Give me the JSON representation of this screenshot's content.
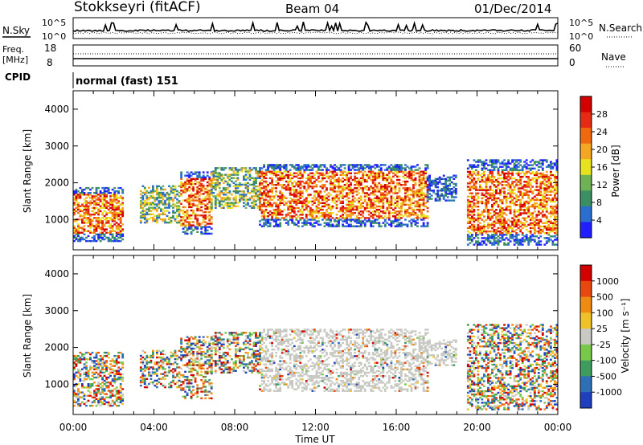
{
  "header": {
    "title": "Stokkseyri (fitACF)",
    "beam": "Beam 04",
    "date": "01/Dec/2014"
  },
  "top_panels": {
    "nsky_label": "N.Sky",
    "nsky_ticks": [
      "10^5",
      "10^0"
    ],
    "nsearch_label": "N.Search",
    "nsearch_ticks": [
      "10^5",
      "10^0"
    ],
    "freq_label": "Freq.",
    "freq_unit": "[MHz]",
    "freq_ticks": [
      "18",
      "8"
    ],
    "nave_label": "Nave",
    "nave_ticks": [
      "60",
      "0"
    ],
    "cpid_label": "CPID",
    "cpid_text": "normal (fast) 151"
  },
  "colors": {
    "power": [
      "#1f1fff",
      "#2a6fcf",
      "#3a8f63",
      "#6fb256",
      "#e8e21c",
      "#f5a623",
      "#ef6a0f",
      "#e62a14",
      "#d40000"
    ],
    "velocity": [
      "#1f3fbf",
      "#2f6fb8",
      "#3e9c5c",
      "#78c84a",
      "#c9c9c3",
      "#f0c22a",
      "#ef8a12",
      "#e8480e",
      "#d40000"
    ]
  },
  "chart_data": [
    {
      "type": "heatmap",
      "name": "power",
      "ylabel": "Slant Range [km]",
      "yticks": [
        "4000",
        "3000",
        "2000",
        "1000"
      ],
      "ylim": [
        180,
        4500
      ],
      "colorbar_label": "Power [dB]",
      "colorbar_ticks": [
        "28",
        "24",
        "20",
        "16",
        "12",
        "8",
        "4"
      ],
      "clim": [
        0,
        30
      ],
      "regions": [
        {
          "t": [
            0.0,
            2.5
          ],
          "r": [
            400,
            1850
          ],
          "level": "high"
        },
        {
          "t": [
            3.3,
            5.2
          ],
          "r": [
            900,
            1900
          ],
          "level": "mid"
        },
        {
          "t": [
            5.3,
            6.8
          ],
          "r": [
            600,
            2300
          ],
          "level": "high"
        },
        {
          "t": [
            6.8,
            9.2
          ],
          "r": [
            1300,
            2400
          ],
          "level": "mid"
        },
        {
          "t": [
            9.2,
            17.5
          ],
          "r": [
            800,
            2500
          ],
          "level": "high"
        },
        {
          "t": [
            17.5,
            19.0
          ],
          "r": [
            1500,
            2200
          ],
          "level": "low"
        },
        {
          "t": [
            19.5,
            24.0
          ],
          "r": [
            300,
            2600
          ],
          "level": "high"
        }
      ]
    },
    {
      "type": "heatmap",
      "name": "velocity",
      "ylabel": "Slant Range [km]",
      "yticks": [
        "4000",
        "3000",
        "2000",
        "1000"
      ],
      "ylim": [
        180,
        4500
      ],
      "colorbar_label": "Velocity [m s⁻¹]",
      "colorbar_ticks": [
        "1000",
        "500",
        "100",
        "25",
        "-25",
        "-100",
        "-500",
        "-1000"
      ],
      "clim": [
        -1000,
        1000
      ],
      "xlabel": "Time UT",
      "xticks": [
        "00:00",
        "04:00",
        "08:00",
        "12:00",
        "16:00",
        "20:00",
        "00:00"
      ],
      "xlim": [
        0,
        24
      ]
    }
  ]
}
